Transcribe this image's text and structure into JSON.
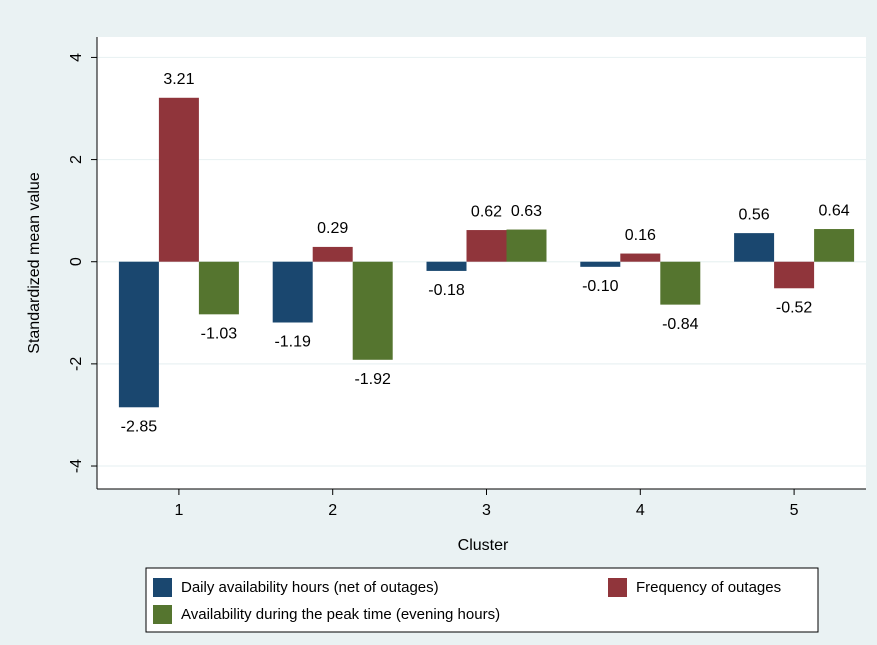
{
  "chart_data": {
    "type": "bar",
    "y_label": "Standardized mean value",
    "x_label": "Cluster",
    "categories": [
      "1",
      "2",
      "3",
      "4",
      "5"
    ],
    "series": [
      {
        "name": "Daily availability hours (net of outages)",
        "color": "#1a476f",
        "values": [
          -2.85,
          -1.19,
          -0.18,
          -0.1,
          0.56
        ],
        "value_labels": [
          "-2.85",
          "-1.19",
          "-0.18",
          "-0.10",
          "0.56"
        ]
      },
      {
        "name": "Frequency of outages",
        "color": "#90353b",
        "values": [
          3.21,
          0.29,
          0.62,
          0.16,
          -0.52
        ],
        "value_labels": [
          "3.21",
          "0.29",
          "0.62",
          "0.16",
          "-0.52"
        ]
      },
      {
        "name": "Availability during the peak time (evening hours)",
        "color": "#55752f",
        "values": [
          -1.03,
          -1.92,
          0.63,
          -0.84,
          0.64
        ],
        "value_labels": [
          "-1.03",
          "-1.92",
          "0.63",
          "-0.84",
          "0.64"
        ]
      }
    ],
    "ylim": [
      -4.45,
      4.4
    ],
    "yticks": [
      -4,
      -2,
      0,
      2,
      4
    ],
    "grid": true,
    "legend": "bottom"
  }
}
